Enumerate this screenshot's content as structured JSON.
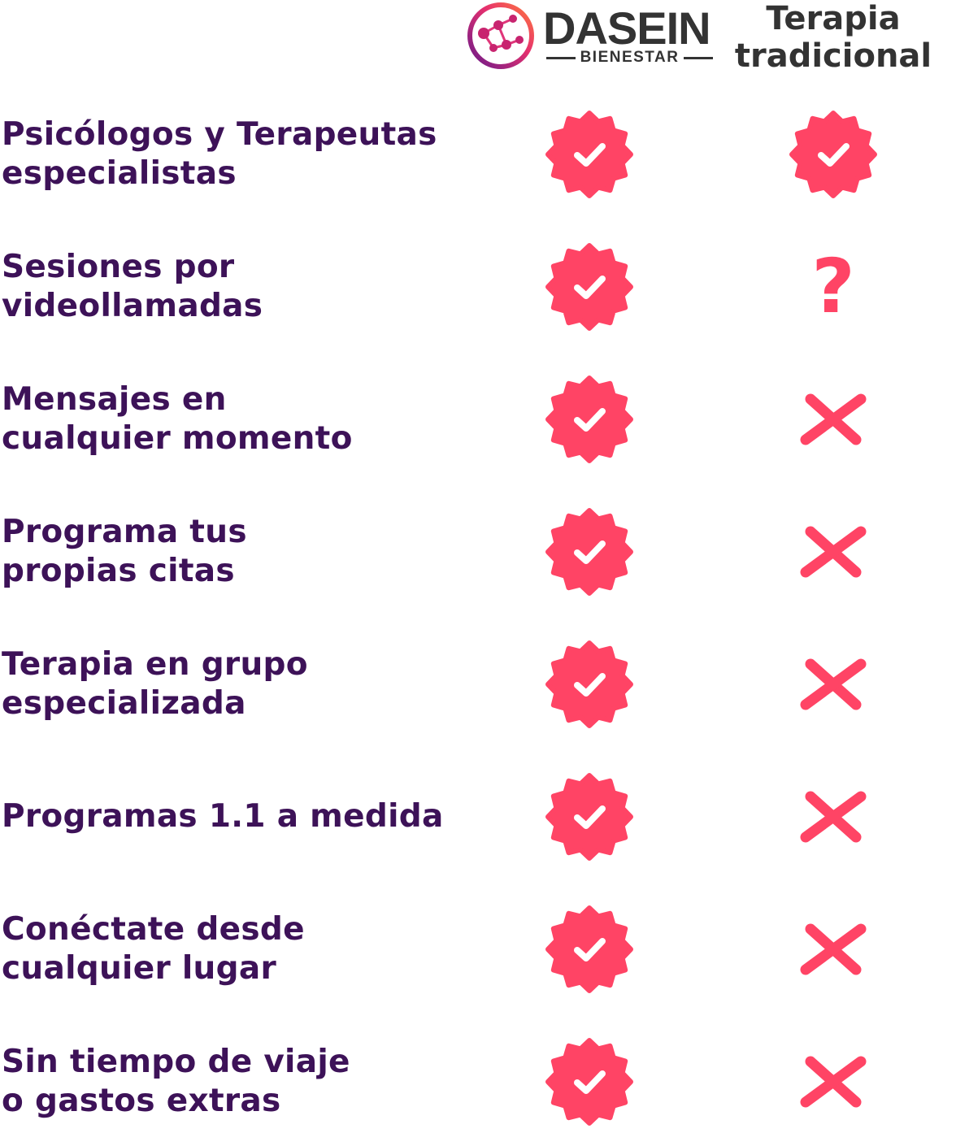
{
  "header": {
    "brand": "DASEIN",
    "tagline": "BIENESTAR",
    "traditional": [
      "Terapia",
      "tradicional"
    ]
  },
  "rows": [
    {
      "label": [
        "Psicólogos y Terapeutas",
        "especialistas"
      ],
      "dasein": "check",
      "traditional": "check"
    },
    {
      "label": [
        "Sesiones por",
        "videollamadas"
      ],
      "dasein": "check",
      "traditional": "?"
    },
    {
      "label": [
        "Mensajes en",
        "cualquier momento"
      ],
      "dasein": "check",
      "traditional": "cross"
    },
    {
      "label": [
        "Programa tus",
        "propias citas"
      ],
      "dasein": "check",
      "traditional": "cross"
    },
    {
      "label": [
        "Terapia en grupo",
        "especializada"
      ],
      "dasein": "check",
      "traditional": "cross"
    },
    {
      "label": [
        "Programas 1.1 a medida"
      ],
      "dasein": "check",
      "traditional": "cross"
    },
    {
      "label": [
        "Conéctate desde",
        "cualquier lugar"
      ],
      "dasein": "check",
      "traditional": "cross"
    },
    {
      "label": [
        "Sin tiempo de viaje",
        "o gastos extras"
      ],
      "dasein": "check",
      "traditional": "cross"
    }
  ]
}
